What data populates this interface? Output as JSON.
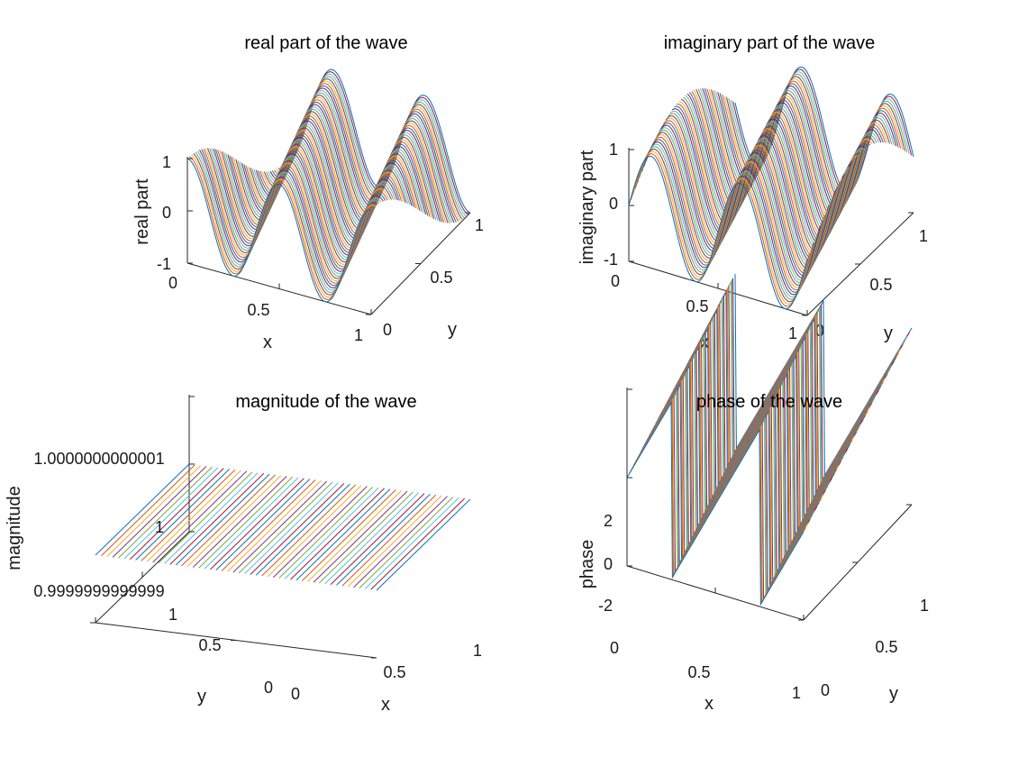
{
  "chart_data": [
    {
      "id": "real",
      "type": "surface3d",
      "title": "real part of the wave",
      "xlabel": "x",
      "ylabel": "y",
      "zlabel": "real part",
      "xlim": [
        0,
        1
      ],
      "ylim": [
        0,
        1
      ],
      "zlim": [
        -1,
        1
      ],
      "x_ticks": [
        "0",
        "0.5",
        "1"
      ],
      "y_ticks": [
        "0",
        "0.5",
        "1"
      ],
      "z_ticks": [
        "-1",
        "0",
        "1"
      ],
      "function": "cos(2*pi*(2*x + 0.5*y))",
      "series_count": 50
    },
    {
      "id": "imag",
      "type": "surface3d",
      "title": "imaginary part of the wave",
      "xlabel": "x",
      "ylabel": "y",
      "zlabel": "imaginary part",
      "xlim": [
        0,
        1
      ],
      "ylim": [
        0,
        1
      ],
      "zlim": [
        -1,
        1
      ],
      "x_ticks": [
        "0",
        "0.5",
        "1"
      ],
      "y_ticks": [
        "0",
        "0.5",
        "1"
      ],
      "z_ticks": [
        "-1",
        "0",
        "1"
      ],
      "function": "sin(2*pi*(2*x + 0.5*y))",
      "series_count": 50
    },
    {
      "id": "mag",
      "type": "surface3d",
      "title": "magnitude of the wave",
      "xlabel": "x",
      "ylabel": "y",
      "zlabel": "magnitude",
      "xlim": [
        0,
        1
      ],
      "ylim": [
        0,
        1
      ],
      "zlim": [
        0.9999999999999,
        1.0000000000001
      ],
      "x_ticks": [
        "0",
        "0.5",
        "1"
      ],
      "y_ticks": [
        "0",
        "0.5",
        "1"
      ],
      "z_ticks": [
        "0.9999999999999",
        "1",
        "1.0000000000001"
      ],
      "function": "1",
      "series_count": 50
    },
    {
      "id": "phase",
      "type": "surface3d",
      "title": "phase of the wave",
      "xlabel": "x",
      "ylabel": "y",
      "zlabel": "phase",
      "xlim": [
        0,
        1
      ],
      "ylim": [
        0,
        1
      ],
      "zlim": [
        -3.1416,
        3.1416
      ],
      "x_ticks": [
        "0",
        "0.5",
        "1"
      ],
      "y_ticks": [
        "0",
        "0.5",
        "1"
      ],
      "z_ticks": [
        "-2",
        "0",
        "2"
      ],
      "function": "angle(exp(i*2*pi*(2*x + 0.5*y)))",
      "series_count": 50
    }
  ],
  "colors": [
    "#0072BD",
    "#D95319",
    "#EDB120",
    "#7E2F8E",
    "#77AC30",
    "#4DBEEE",
    "#A2142F"
  ]
}
